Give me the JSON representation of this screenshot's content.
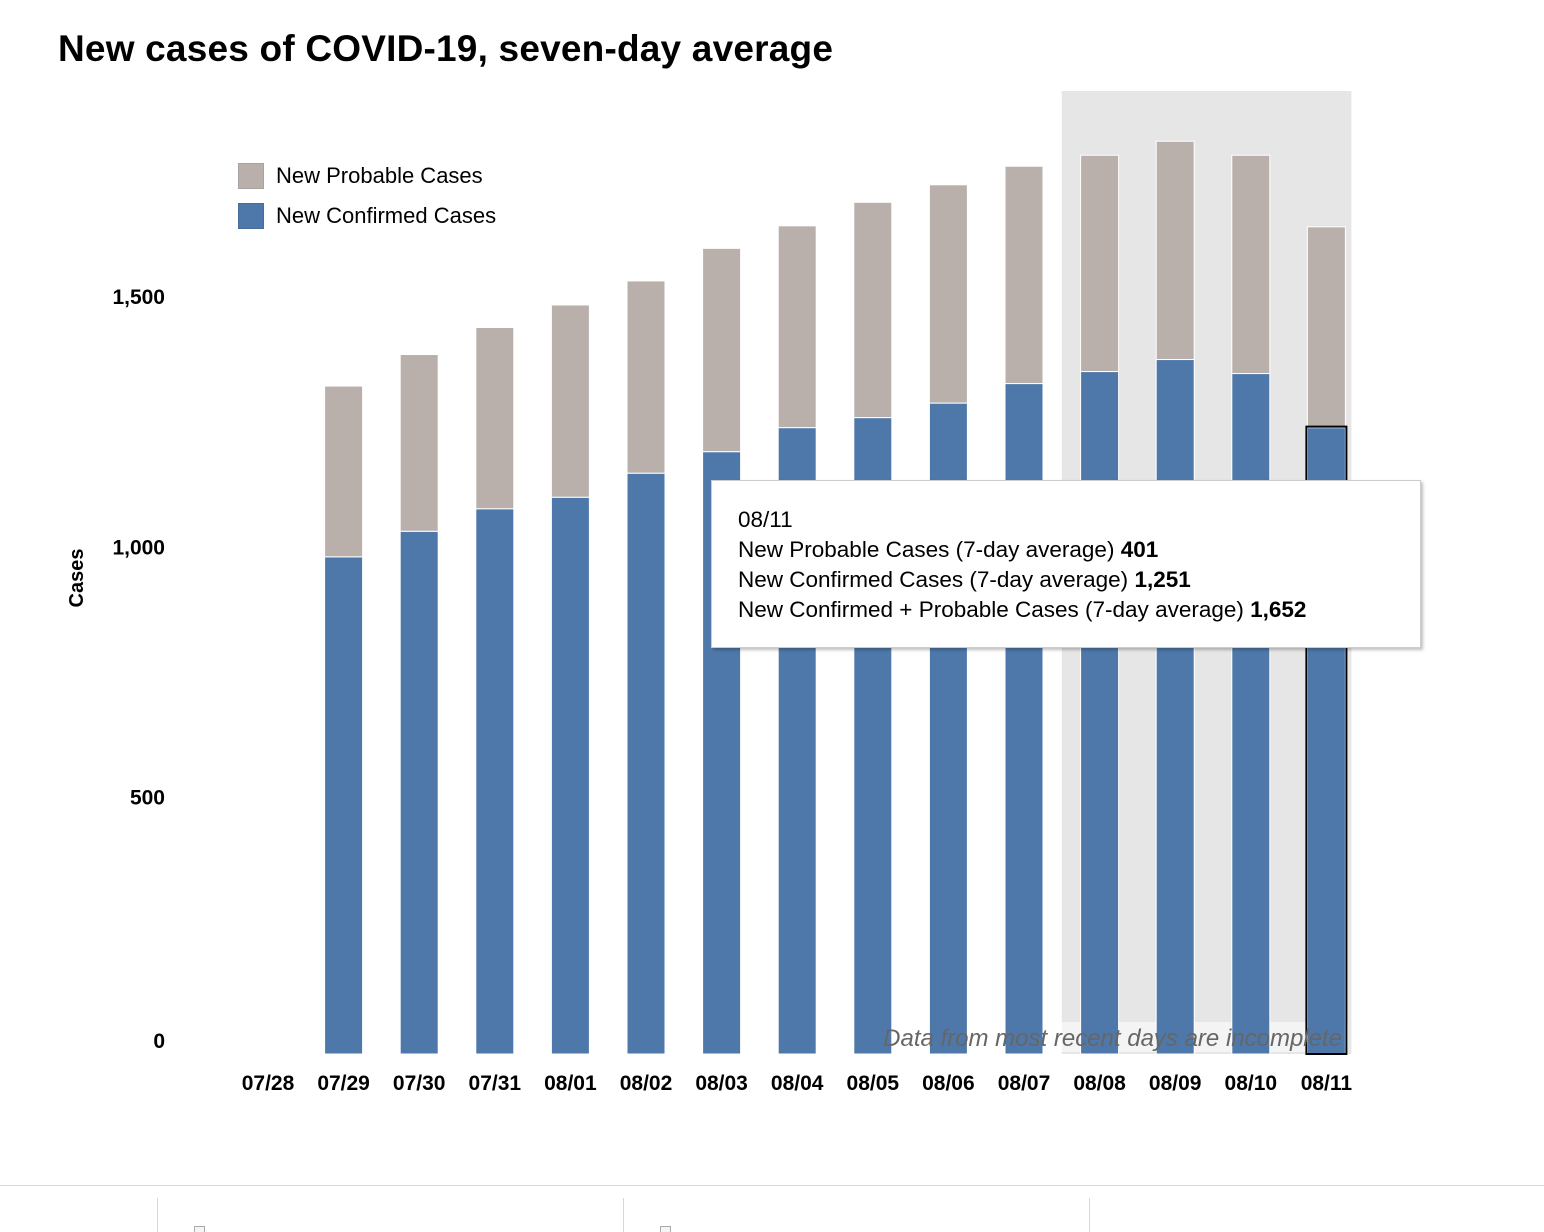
{
  "chart_data": {
    "type": "bar",
    "stacked": true,
    "title": "New cases of COVID-19, seven-day average",
    "xlabel": "",
    "ylabel": "Cases",
    "ylim": [
      0,
      1800
    ],
    "yticks": [
      0,
      500,
      1000,
      1500
    ],
    "ytick_labels": [
      "0",
      "500",
      "1,000",
      "1,500"
    ],
    "categories": [
      "07/28",
      "07/29",
      "07/30",
      "07/31",
      "08/01",
      "08/02",
      "08/03",
      "08/04",
      "08/05",
      "08/06",
      "08/07",
      "08/08",
      "08/09",
      "08/10",
      "08/11"
    ],
    "series": [
      {
        "name": "New Confirmed Cases",
        "color": "#4e78a9",
        "values": [
          null,
          993,
          1044,
          1089,
          1112,
          1160,
          1203,
          1251,
          1271,
          1300,
          1339,
          1363,
          1387,
          1359,
          1251
        ]
      },
      {
        "name": "New Probable Cases",
        "color": "#b9b0ac",
        "values": [
          null,
          341,
          353,
          362,
          384,
          384,
          406,
          403,
          430,
          436,
          434,
          432,
          436,
          436,
          401
        ]
      }
    ],
    "legend": [
      {
        "label": "New Probable Cases",
        "color": "#b9b0ac"
      },
      {
        "label": "New Confirmed Cases",
        "color": "#4e78a9"
      }
    ],
    "legend_position": "top-left",
    "incomplete_region": {
      "start": "08/08",
      "end": "08/11",
      "color": "#e6e6e6",
      "note": "Data from most recent days are incomplete"
    },
    "highlighted_category": "08/11"
  },
  "tooltip": {
    "date": "08/11",
    "rows": [
      {
        "label": "New Probable Cases (7-day average)",
        "value": "401"
      },
      {
        "label": "New Confirmed Cases (7-day average)",
        "value": "1,251"
      },
      {
        "label": "New Confirmed + Probable Cases (7-day average)",
        "value": "1,652"
      }
    ]
  }
}
